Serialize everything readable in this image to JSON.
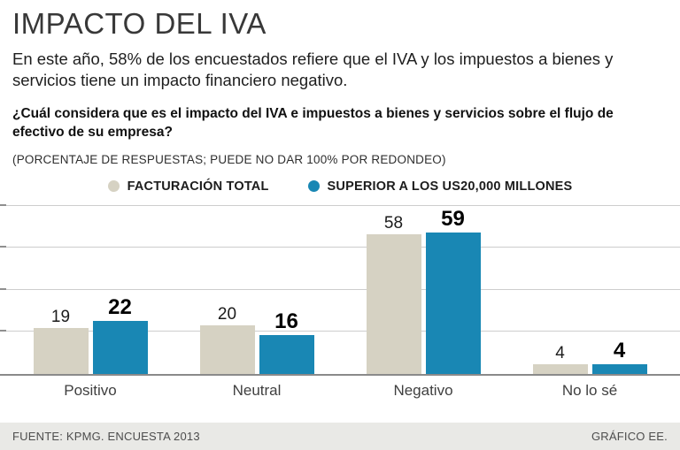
{
  "header": {
    "title": "IMPACTO DEL IVA",
    "subtitle": "En este año, 58% de los encuestados refiere que el IVA y los impuestos a bienes y servicios tiene un impacto financiero negativo.",
    "question": "¿Cuál considera que es el impacto del IVA e impuestos a bienes y servicios sobre el flujo de efectivo de su empresa?",
    "note": "(PORCENTAJE DE RESPUESTAS; PUEDE NO DAR 100% POR REDONDEO)"
  },
  "chart_data": {
    "type": "bar",
    "categories": [
      "Positivo",
      "Neutral",
      "Negativo",
      "No lo sé"
    ],
    "series": [
      {
        "name": "FACTURACIÓN TOTAL",
        "color": "#d6d2c3",
        "values": [
          19,
          20,
          58,
          4
        ]
      },
      {
        "name": "SUPERIOR A LOS US20,000 MILLONES",
        "color": "#1987b4",
        "values": [
          22,
          16,
          59,
          4
        ]
      }
    ],
    "title": "IMPACTO DEL IVA",
    "xlabel": "",
    "ylabel": "",
    "ylim": [
      0,
      70
    ],
    "grid": true,
    "gridline_labels_shown": false,
    "legend_position": "top",
    "value_labels": "above-bars"
  },
  "footer": {
    "source": "FUENTE: KPMG. ENCUESTA 2013",
    "credit": "GRÁFICO EE."
  }
}
